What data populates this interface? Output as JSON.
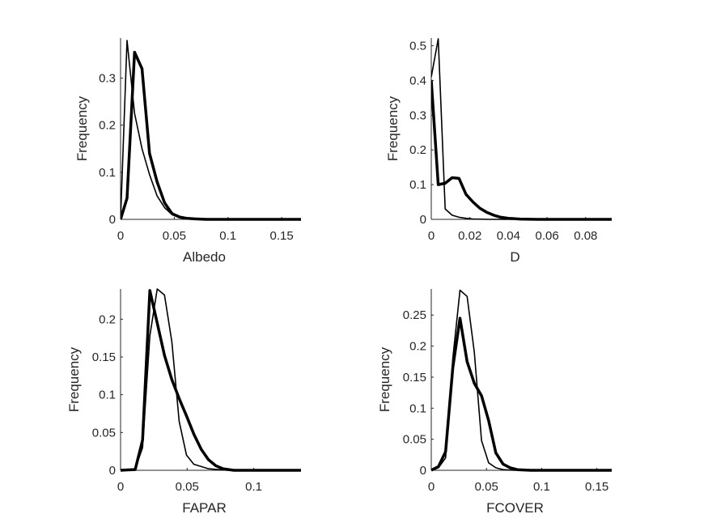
{
  "chart_data": [
    {
      "type": "line",
      "xlabel": "Albedo",
      "ylabel": "Frequency",
      "xlim": [
        0,
        0.168
      ],
      "ylim": [
        0,
        0.385
      ],
      "xticks": [
        0,
        0.05,
        0.1,
        0.15
      ],
      "xtick_labels": [
        "0",
        "0.05",
        "0.1",
        "0.15"
      ],
      "yticks": [
        0,
        0.1,
        0.2,
        0.3
      ],
      "ytick_labels": [
        "0",
        "0.1",
        "0.2",
        "0.3"
      ],
      "grid": false,
      "series": [
        {
          "style": "thin",
          "x": [
            0,
            0.006,
            0.013,
            0.02,
            0.027,
            0.034,
            0.041,
            0.048,
            0.055,
            0.062,
            0.069,
            0.08,
            0.1,
            0.168
          ],
          "y": [
            0,
            0.38,
            0.225,
            0.15,
            0.095,
            0.05,
            0.025,
            0.01,
            0.004,
            0.002,
            0.001,
            0,
            0,
            0
          ]
        },
        {
          "style": "thick",
          "x": [
            0,
            0.006,
            0.013,
            0.02,
            0.027,
            0.034,
            0.041,
            0.048,
            0.055,
            0.062,
            0.069,
            0.08,
            0.1,
            0.168
          ],
          "y": [
            0,
            0.045,
            0.355,
            0.32,
            0.14,
            0.08,
            0.035,
            0.012,
            0.005,
            0.002,
            0.001,
            0,
            0,
            0
          ]
        }
      ]
    },
    {
      "type": "line",
      "xlabel": "D",
      "ylabel": "Frequency",
      "xlim": [
        0,
        0.0935
      ],
      "ylim": [
        0,
        0.522
      ],
      "xticks": [
        0,
        0.02,
        0.04,
        0.06,
        0.08
      ],
      "xtick_labels": [
        "0",
        "0.02",
        "0.04",
        "0.06",
        "0.08"
      ],
      "yticks": [
        0,
        0.1,
        0.2,
        0.3,
        0.4,
        0.5
      ],
      "ytick_labels": [
        "0",
        "0.1",
        "0.2",
        "0.3",
        "0.4",
        "0.5"
      ],
      "grid": false,
      "series": [
        {
          "style": "thin",
          "x": [
            0,
            0.0036,
            0.0072,
            0.0108,
            0.0144,
            0.018,
            0.0216,
            0.03,
            0.05,
            0.0935
          ],
          "y": [
            0.41,
            0.52,
            0.03,
            0.012,
            0.006,
            0.003,
            0.001,
            0,
            0,
            0
          ]
        },
        {
          "style": "thick",
          "x": [
            0,
            0.0036,
            0.0072,
            0.0108,
            0.0144,
            0.018,
            0.0216,
            0.0252,
            0.0288,
            0.0324,
            0.036,
            0.04,
            0.046,
            0.055,
            0.0935
          ],
          "y": [
            0.4,
            0.1,
            0.104,
            0.12,
            0.118,
            0.072,
            0.05,
            0.032,
            0.02,
            0.012,
            0.006,
            0.003,
            0.001,
            0,
            0
          ]
        }
      ]
    },
    {
      "type": "line",
      "xlabel": "FAPAR",
      "ylabel": "Frequency",
      "xlim": [
        0,
        0.1355
      ],
      "ylim": [
        0,
        0.24
      ],
      "xticks": [
        0,
        0.05,
        0.1
      ],
      "xtick_labels": [
        "0",
        "0.05",
        "0.1"
      ],
      "yticks": [
        0,
        0.05,
        0.1,
        0.15,
        0.2
      ],
      "ytick_labels": [
        "0",
        "0.05",
        "0.1",
        "0.15",
        "0.2"
      ],
      "grid": false,
      "series": [
        {
          "style": "thin",
          "x": [
            0,
            0.0055,
            0.011,
            0.0165,
            0.022,
            0.0275,
            0.033,
            0.0385,
            0.044,
            0.0495,
            0.055,
            0.066,
            0.08,
            0.1355
          ],
          "y": [
            0,
            0.001,
            0.002,
            0.03,
            0.178,
            0.24,
            0.232,
            0.17,
            0.065,
            0.02,
            0.008,
            0.002,
            0,
            0
          ]
        },
        {
          "style": "thick",
          "x": [
            0,
            0.0055,
            0.011,
            0.0165,
            0.022,
            0.0275,
            0.033,
            0.0385,
            0.044,
            0.0495,
            0.055,
            0.0605,
            0.066,
            0.0715,
            0.077,
            0.085,
            0.1355
          ],
          "y": [
            0,
            0.0005,
            0.001,
            0.04,
            0.238,
            0.195,
            0.152,
            0.12,
            0.095,
            0.072,
            0.048,
            0.028,
            0.014,
            0.006,
            0.002,
            0,
            0
          ]
        }
      ]
    },
    {
      "type": "line",
      "xlabel": "FCOVER",
      "ylabel": "Frequency",
      "xlim": [
        0,
        0.1635
      ],
      "ylim": [
        0,
        0.292
      ],
      "xticks": [
        0,
        0.05,
        0.1,
        0.15
      ],
      "xtick_labels": [
        "0",
        "0.05",
        "0.1",
        "0.15"
      ],
      "yticks": [
        0,
        0.05,
        0.1,
        0.15,
        0.2,
        0.25
      ],
      "ytick_labels": [
        "0",
        "0.05",
        "0.1",
        "0.15",
        "0.2",
        "0.25"
      ],
      "grid": false,
      "series": [
        {
          "style": "thin",
          "x": [
            0,
            0.0065,
            0.013,
            0.0195,
            0.026,
            0.0325,
            0.039,
            0.0455,
            0.052,
            0.0585,
            0.065,
            0.075,
            0.09,
            0.1635
          ],
          "y": [
            0,
            0.004,
            0.02,
            0.18,
            0.29,
            0.28,
            0.19,
            0.048,
            0.012,
            0.004,
            0.001,
            0,
            0,
            0
          ]
        },
        {
          "style": "thick",
          "x": [
            0,
            0.0065,
            0.013,
            0.0195,
            0.026,
            0.0325,
            0.039,
            0.0455,
            0.052,
            0.0585,
            0.065,
            0.0715,
            0.078,
            0.09,
            0.1635
          ],
          "y": [
            0,
            0.006,
            0.03,
            0.165,
            0.245,
            0.175,
            0.14,
            0.12,
            0.08,
            0.028,
            0.01,
            0.004,
            0.001,
            0,
            0
          ]
        }
      ]
    }
  ]
}
